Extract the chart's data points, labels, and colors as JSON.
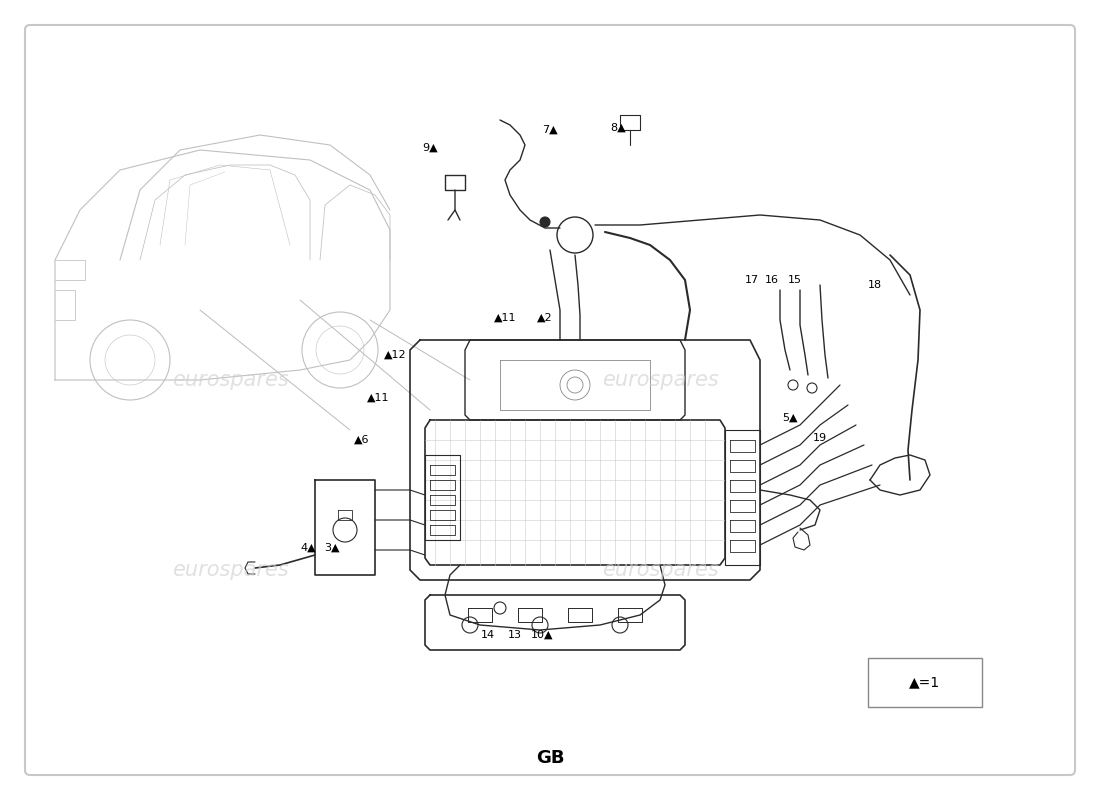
{
  "title": "GB",
  "watermark": "eurospares",
  "background_color": "#ffffff",
  "border_color": "#c8c8c8",
  "line_color": "#2a2a2a",
  "light_line": "#aaaaaa",
  "legend_text": "▲=1",
  "figsize": [
    11.0,
    8.0
  ],
  "dpi": 100,
  "xlim": [
    0,
    1100
  ],
  "ylim": [
    0,
    800
  ]
}
